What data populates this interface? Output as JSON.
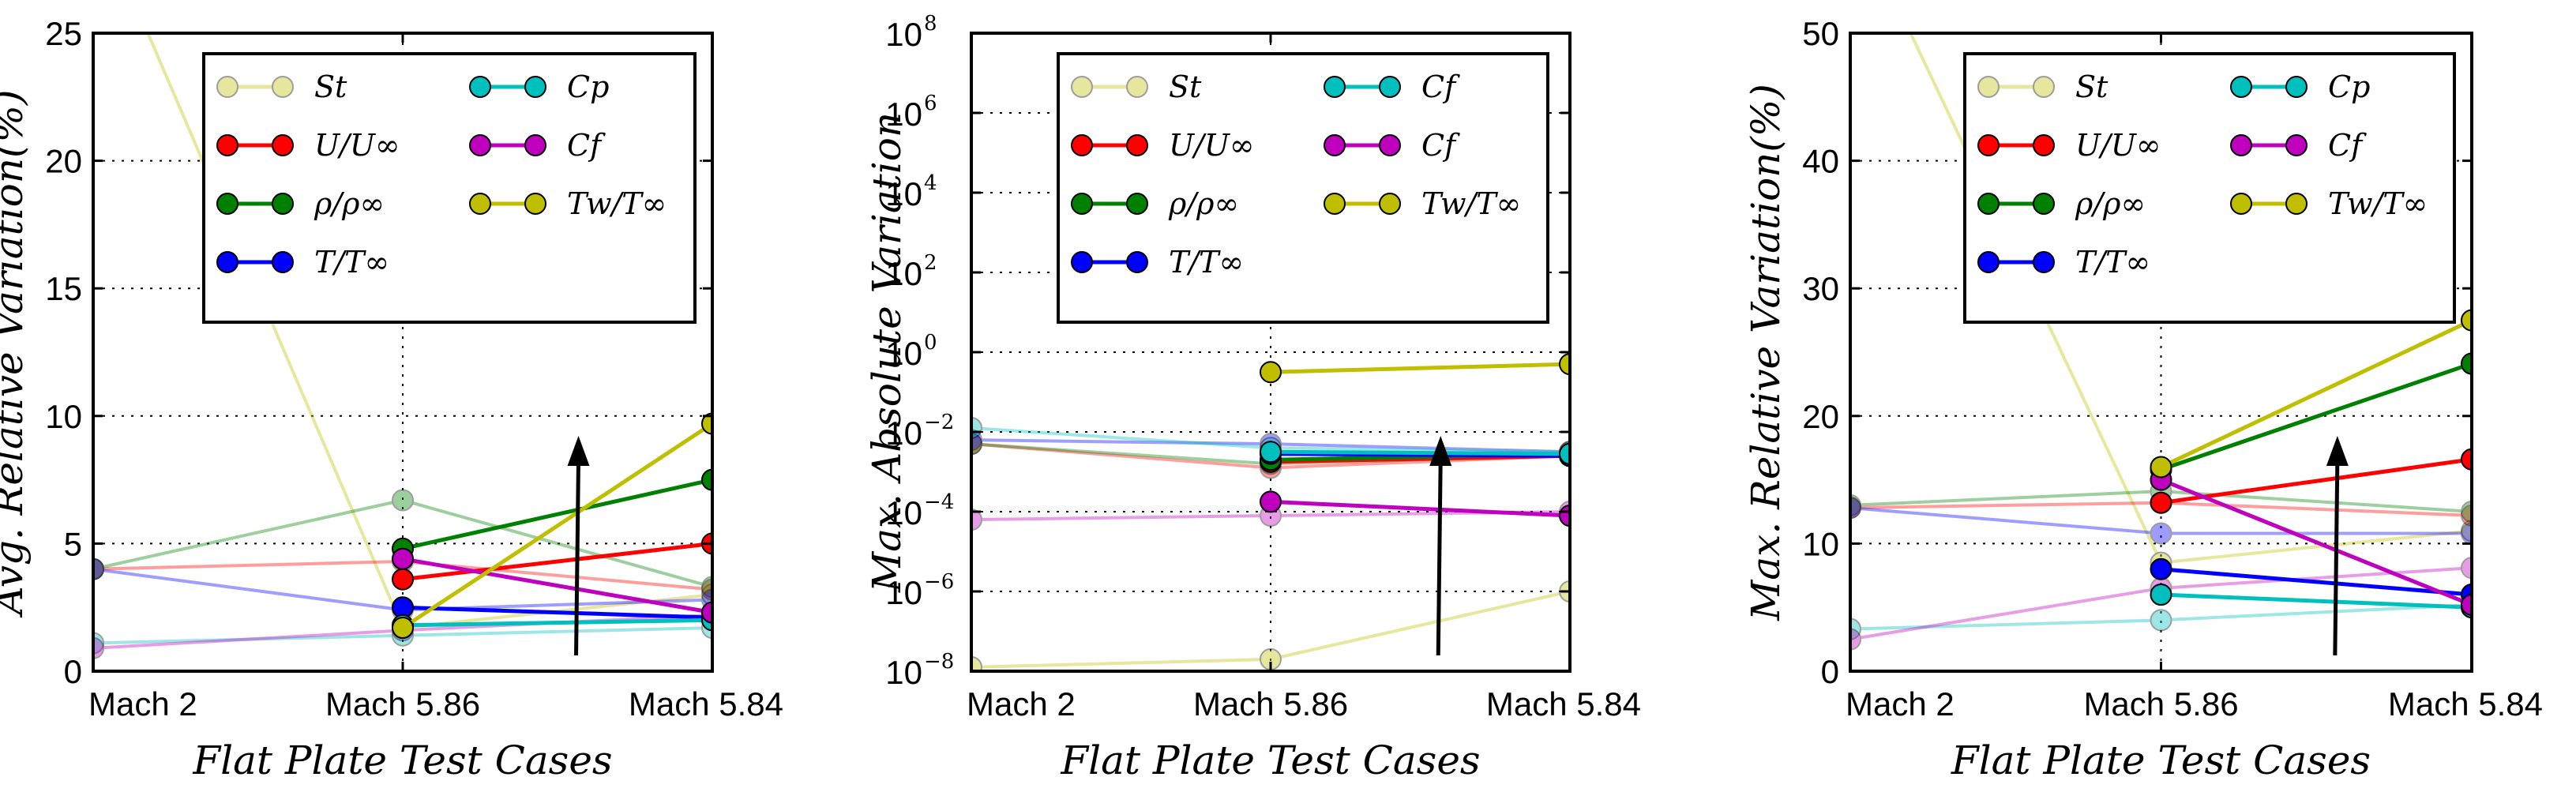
{
  "chart_data": [
    {
      "type": "line",
      "xlabel": "Flat Plate Test Cases",
      "ylabel": "Avg. Relative Variation(%)",
      "categories": [
        "Mach 2",
        "Mach 5.86",
        "Mach 5.84"
      ],
      "ylim": [
        0,
        25
      ],
      "yscale": "linear",
      "yticks": [
        "0",
        "5",
        "10",
        "15",
        "20",
        "25"
      ],
      "ytick_values": [
        0,
        5,
        10,
        15,
        20,
        25
      ],
      "grid": "dotted",
      "legend": "top",
      "annotation": "upward arrow",
      "series": [
        {
          "name": "St",
          "color": "#bfbf00",
          "faded": true,
          "values": [
            30,
            1.7,
            3.0
          ]
        },
        {
          "name": "U/U∞",
          "color": "#ff0000",
          "faded": false,
          "values": [
            null,
            3.6,
            5.0
          ]
        },
        {
          "name": "ρ/ρ∞",
          "color": "#008000",
          "faded": false,
          "values": [
            null,
            4.8,
            7.5
          ]
        },
        {
          "name": "T/T∞",
          "color": "#0000ff",
          "faded": false,
          "values": [
            null,
            2.5,
            2.1
          ]
        },
        {
          "name": "Cp",
          "color": "#00bfbf",
          "faded": false,
          "values": [
            null,
            1.8,
            2.0
          ]
        },
        {
          "name": "Cf",
          "color": "#bf00bf",
          "faded": false,
          "values": [
            null,
            4.4,
            2.3
          ]
        },
        {
          "name": "Tw/T∞",
          "color": "#bfbf00",
          "faded": false,
          "values": [
            null,
            1.7,
            9.7
          ]
        },
        {
          "name": "U/U∞",
          "color": "#ff0000",
          "faded": true,
          "values": [
            4.0,
            4.3,
            3.2
          ]
        },
        {
          "name": "ρ/ρ∞",
          "color": "#008000",
          "faded": true,
          "values": [
            4.0,
            6.7,
            3.3
          ]
        },
        {
          "name": "T/T∞",
          "color": "#0000ff",
          "faded": true,
          "values": [
            4.0,
            2.4,
            2.8
          ]
        },
        {
          "name": "Cp",
          "color": "#00bfbf",
          "faded": true,
          "values": [
            1.1,
            1.4,
            1.7
          ]
        },
        {
          "name": "Cf",
          "color": "#bf00bf",
          "faded": true,
          "values": [
            0.9,
            1.6,
            2.2
          ]
        }
      ]
    },
    {
      "type": "line",
      "xlabel": "Flat Plate Test Cases",
      "ylabel": "Max. Absolute Variation",
      "categories": [
        "Mach 2",
        "Mach 5.86",
        "Mach 5.84"
      ],
      "ylim": [
        -8,
        8
      ],
      "yscale": "log10",
      "yticks": [
        "10",
        "10",
        "10",
        "10",
        "10",
        "10",
        "10",
        "10",
        "10"
      ],
      "ytick_exps": [
        "−8",
        "−6",
        "−4",
        "−2",
        "0",
        "2",
        "4",
        "6",
        "8"
      ],
      "ytick_values": [
        -8,
        -6,
        -4,
        -2,
        0,
        2,
        4,
        6,
        8
      ],
      "grid": "dotted",
      "legend": "top",
      "annotation": "upward arrow",
      "series": [
        {
          "name": "St",
          "color": "#bfbf00",
          "faded": true,
          "values": [
            -7.9,
            -7.7,
            -6.0
          ]
        },
        {
          "name": "U/U∞",
          "color": "#ff0000",
          "faded": false,
          "values": [
            null,
            -2.75,
            -2.6
          ]
        },
        {
          "name": "ρ/ρ∞",
          "color": "#008000",
          "faded": false,
          "values": [
            null,
            -2.7,
            -2.55
          ]
        },
        {
          "name": "T/T∞",
          "color": "#0000ff",
          "faded": false,
          "values": [
            null,
            -2.55,
            -2.6
          ]
        },
        {
          "name": "Cf",
          "color": "#00bfbf",
          "faded": false,
          "values": [
            null,
            -2.5,
            -2.55
          ]
        },
        {
          "name": "Cf",
          "color": "#bf00bf",
          "faded": false,
          "values": [
            null,
            -3.75,
            -4.1
          ]
        },
        {
          "name": "Tw/T∞",
          "color": "#bfbf00",
          "faded": false,
          "values": [
            null,
            -0.5,
            -0.3
          ]
        },
        {
          "name": "U/U∞",
          "color": "#ff0000",
          "faded": true,
          "values": [
            -2.3,
            -2.9,
            -2.6
          ]
        },
        {
          "name": "ρ/ρ∞",
          "color": "#008000",
          "faded": true,
          "values": [
            -2.3,
            -2.8,
            -2.6
          ]
        },
        {
          "name": "T/T∞",
          "color": "#0000ff",
          "faded": true,
          "values": [
            -2.2,
            -2.3,
            -2.5
          ]
        },
        {
          "name": "Cf",
          "color": "#00bfbf",
          "faded": true,
          "values": [
            -1.9,
            -2.4,
            -2.5
          ]
        },
        {
          "name": "Cf",
          "color": "#bf00bf",
          "faded": true,
          "values": [
            -4.2,
            -4.1,
            -4.0
          ]
        }
      ]
    },
    {
      "type": "line",
      "xlabel": "Flat Plate Test Cases",
      "ylabel": "Max. Relative Variation(%)",
      "categories": [
        "Mach 2",
        "Mach 5.86",
        "Mach 5.84"
      ],
      "ylim": [
        0,
        50
      ],
      "yscale": "linear",
      "yticks": [
        "0",
        "10",
        "20",
        "30",
        "40",
        "50"
      ],
      "ytick_values": [
        0,
        10,
        20,
        30,
        40,
        50
      ],
      "grid": "dotted",
      "legend": "top",
      "annotation": "upward arrow",
      "series": [
        {
          "name": "St",
          "color": "#bfbf00",
          "faded": true,
          "values": [
            60,
            8.5,
            11
          ]
        },
        {
          "name": "U/U∞",
          "color": "#ff0000",
          "faded": false,
          "values": [
            null,
            13.2,
            16.6
          ]
        },
        {
          "name": "ρ/ρ∞",
          "color": "#008000",
          "faded": false,
          "values": [
            null,
            15.8,
            24.1
          ]
        },
        {
          "name": "T/T∞",
          "color": "#0000ff",
          "faded": false,
          "values": [
            null,
            8.0,
            6.0
          ]
        },
        {
          "name": "Cp",
          "color": "#00bfbf",
          "faded": false,
          "values": [
            null,
            6.0,
            5.0
          ]
        },
        {
          "name": "Cf",
          "color": "#bf00bf",
          "faded": false,
          "values": [
            null,
            15.0,
            5.2
          ]
        },
        {
          "name": "Tw/T∞",
          "color": "#bfbf00",
          "faded": false,
          "values": [
            null,
            16.0,
            27.5
          ]
        },
        {
          "name": "U/U∞",
          "color": "#ff0000",
          "faded": true,
          "values": [
            12.8,
            13.2,
            12.2
          ]
        },
        {
          "name": "ρ/ρ∞",
          "color": "#008000",
          "faded": true,
          "values": [
            13.0,
            14.1,
            12.5
          ]
        },
        {
          "name": "T/T∞",
          "color": "#0000ff",
          "faded": true,
          "values": [
            12.8,
            10.8,
            10.8
          ]
        },
        {
          "name": "Cp",
          "color": "#00bfbf",
          "faded": true,
          "values": [
            3.3,
            4.0,
            5.2
          ]
        },
        {
          "name": "Cf",
          "color": "#bf00bf",
          "faded": true,
          "values": [
            2.5,
            6.5,
            8.1
          ]
        }
      ]
    }
  ]
}
